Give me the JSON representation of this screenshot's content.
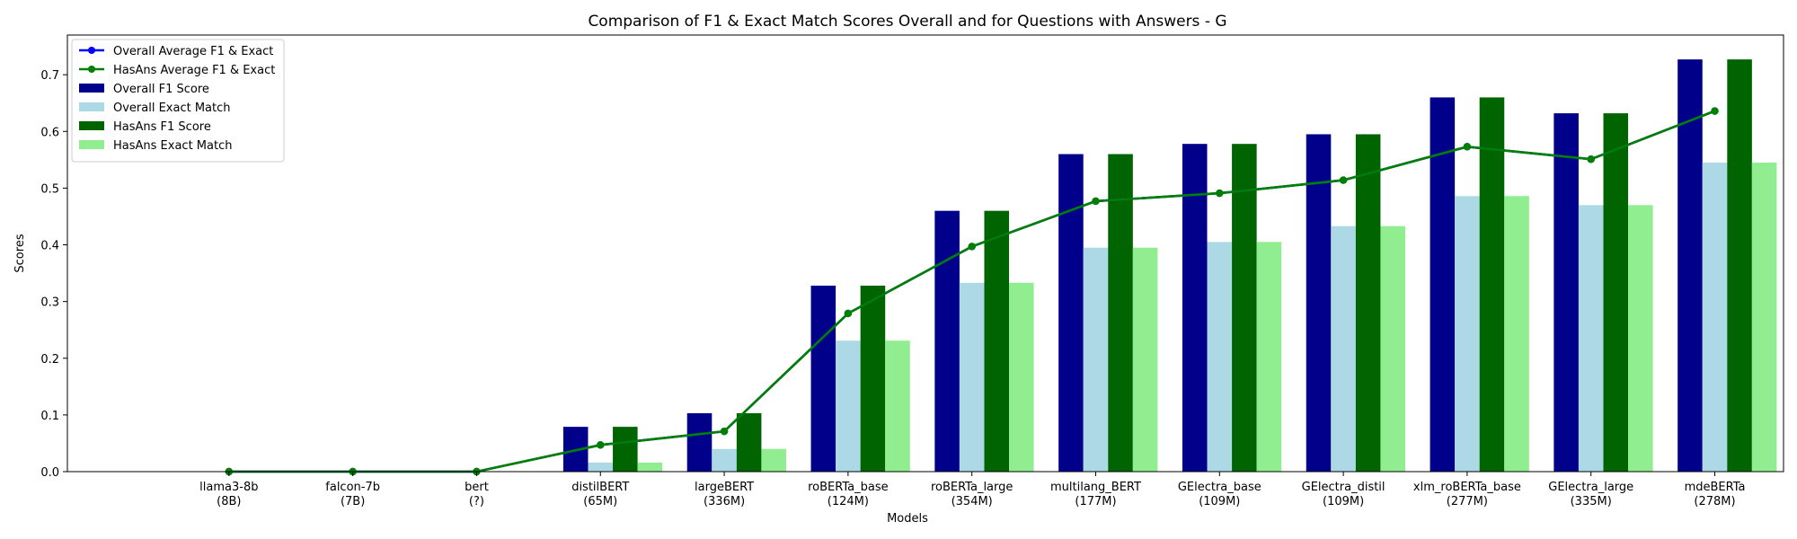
{
  "chart_data": {
    "type": "bar",
    "title": "Comparison of F1 & Exact Match Scores Overall and for Questions with Answers - G",
    "xlabel": "Models",
    "ylabel": "Scores",
    "ylim": [
      0,
      0.77
    ],
    "yticks": [
      "0.0",
      "0.1",
      "0.2",
      "0.3",
      "0.4",
      "0.5",
      "0.6",
      "0.7"
    ],
    "legend_position": "top-left",
    "categories": [
      {
        "name": "llama3-8b",
        "size": "(8B)"
      },
      {
        "name": "falcon-7b",
        "size": "(7B)"
      },
      {
        "name": "bert",
        "size": "(?)"
      },
      {
        "name": "distilBERT",
        "size": "(65M)"
      },
      {
        "name": "largeBERT",
        "size": "(336M)"
      },
      {
        "name": "roBERTa_base",
        "size": "(124M)"
      },
      {
        "name": "roBERTa_large",
        "size": "(354M)"
      },
      {
        "name": "multilang_BERT",
        "size": "(177M)"
      },
      {
        "name": "GElectra_base",
        "size": "(109M)"
      },
      {
        "name": "GElectra_distil",
        "size": "(109M)"
      },
      {
        "name": "xlm_roBERTa_base",
        "size": "(277M)"
      },
      {
        "name": "GElectra_large",
        "size": "(335M)"
      },
      {
        "name": "mdeBERTa",
        "size": "(278M)"
      }
    ],
    "bar_series": [
      {
        "name": "Overall F1 Score",
        "color": "#00008b",
        "values": [
          0,
          0,
          0,
          0.079,
          0.103,
          0.328,
          0.46,
          0.56,
          0.578,
          0.595,
          0.66,
          0.632,
          0.727
        ]
      },
      {
        "name": "Overall Exact Match",
        "color": "#add8e6",
        "values": [
          0,
          0,
          0,
          0.016,
          0.04,
          0.231,
          0.333,
          0.395,
          0.405,
          0.433,
          0.486,
          0.47,
          0.545
        ]
      },
      {
        "name": "HasAns F1 Score",
        "color": "#006400",
        "values": [
          0,
          0,
          0,
          0.079,
          0.103,
          0.328,
          0.46,
          0.56,
          0.578,
          0.595,
          0.66,
          0.632,
          0.727
        ]
      },
      {
        "name": "HasAns Exact Match",
        "color": "#90ee90",
        "values": [
          0,
          0,
          0,
          0.016,
          0.04,
          0.231,
          0.333,
          0.395,
          0.405,
          0.433,
          0.486,
          0.47,
          0.545
        ]
      }
    ],
    "line_series": [
      {
        "name": "Overall Average F1 & Exact",
        "color": "#0000ff",
        "values": [
          0,
          0,
          0,
          0.047,
          0.071,
          0.279,
          0.397,
          0.477,
          0.491,
          0.514,
          0.573,
          0.551,
          0.636
        ]
      },
      {
        "name": "HasAns Average F1 & Exact",
        "color": "#008000",
        "values": [
          0,
          0,
          0,
          0.047,
          0.071,
          0.279,
          0.397,
          0.477,
          0.491,
          0.514,
          0.573,
          0.551,
          0.636
        ]
      }
    ]
  }
}
